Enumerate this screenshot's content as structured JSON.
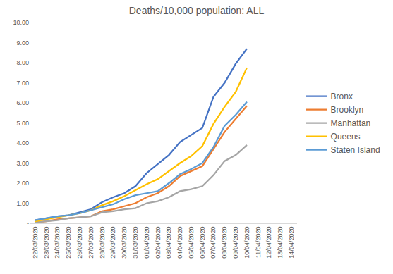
{
  "chart_data": {
    "type": "line",
    "title": "Deaths/10,000 population: ALL",
    "categories": [
      "22/03/2020",
      "23/03/2020",
      "24/03/2020",
      "25/03/2020",
      "26/03/2020",
      "27/03/2020",
      "28/03/2020",
      "29/03/2020",
      "30/03/2020",
      "31/03/2020",
      "01/04/2020",
      "02/04/2020",
      "03/04/2020",
      "04/04/2020",
      "05/04/2020",
      "06/04/2020",
      "07/04/2020",
      "08/04/2020",
      "09/04/2020",
      "10/04/2020",
      "11/04/2020",
      "12/04/2020",
      "13/04/2020",
      "14/04/2020"
    ],
    "series": [
      {
        "name": "Bronx",
        "color": "#4472C4",
        "values": [
          0.15,
          0.25,
          0.35,
          0.4,
          0.55,
          0.7,
          1.05,
          1.3,
          1.5,
          1.85,
          2.5,
          2.95,
          3.4,
          4.05,
          4.4,
          4.75,
          6.3,
          7.0,
          7.95,
          8.7,
          null,
          null,
          null,
          null
        ]
      },
      {
        "name": "Brooklyn",
        "color": "#ED7D31",
        "values": [
          0.05,
          0.1,
          0.2,
          0.25,
          0.3,
          0.35,
          0.6,
          0.7,
          0.85,
          1.0,
          1.3,
          1.5,
          1.85,
          2.35,
          2.6,
          2.85,
          3.7,
          4.55,
          5.2,
          5.85,
          null,
          null,
          null,
          null
        ]
      },
      {
        "name": "Manhattan",
        "color": "#A5A5A5",
        "values": [
          0.05,
          0.1,
          0.15,
          0.25,
          0.3,
          0.35,
          0.55,
          0.6,
          0.7,
          0.75,
          1.0,
          1.1,
          1.3,
          1.6,
          1.7,
          1.85,
          2.4,
          3.1,
          3.4,
          3.9,
          null,
          null,
          null,
          null
        ]
      },
      {
        "name": "Queens",
        "color": "#FFC000",
        "values": [
          0.1,
          0.2,
          0.3,
          0.4,
          0.5,
          0.65,
          0.9,
          1.1,
          1.35,
          1.65,
          1.95,
          2.2,
          2.6,
          3.0,
          3.35,
          3.85,
          4.95,
          5.8,
          6.55,
          7.75,
          null,
          null,
          null,
          null
        ]
      },
      {
        "name": "Staten Island",
        "color": "#5B9BD5",
        "values": [
          0.15,
          0.25,
          0.35,
          0.4,
          0.5,
          0.65,
          0.8,
          0.95,
          1.2,
          1.4,
          1.5,
          1.6,
          2.0,
          2.45,
          2.7,
          3.0,
          3.8,
          4.85,
          5.4,
          6.05,
          null,
          null,
          null,
          null
        ]
      }
    ],
    "ylim": [
      0,
      10
    ],
    "yticks": [
      {
        "value": 0,
        "label": "-"
      },
      {
        "value": 1,
        "label": "1.00"
      },
      {
        "value": 2,
        "label": "2.00"
      },
      {
        "value": 3,
        "label": "3.00"
      },
      {
        "value": 4,
        "label": "4.00"
      },
      {
        "value": 5,
        "label": "5.00"
      },
      {
        "value": 6,
        "label": "6.00"
      },
      {
        "value": 7,
        "label": "7.00"
      },
      {
        "value": 8,
        "label": "8.00"
      },
      {
        "value": 9,
        "label": "9.00"
      },
      {
        "value": 10,
        "label": "10.00"
      }
    ],
    "grid": false,
    "legend": "right"
  }
}
